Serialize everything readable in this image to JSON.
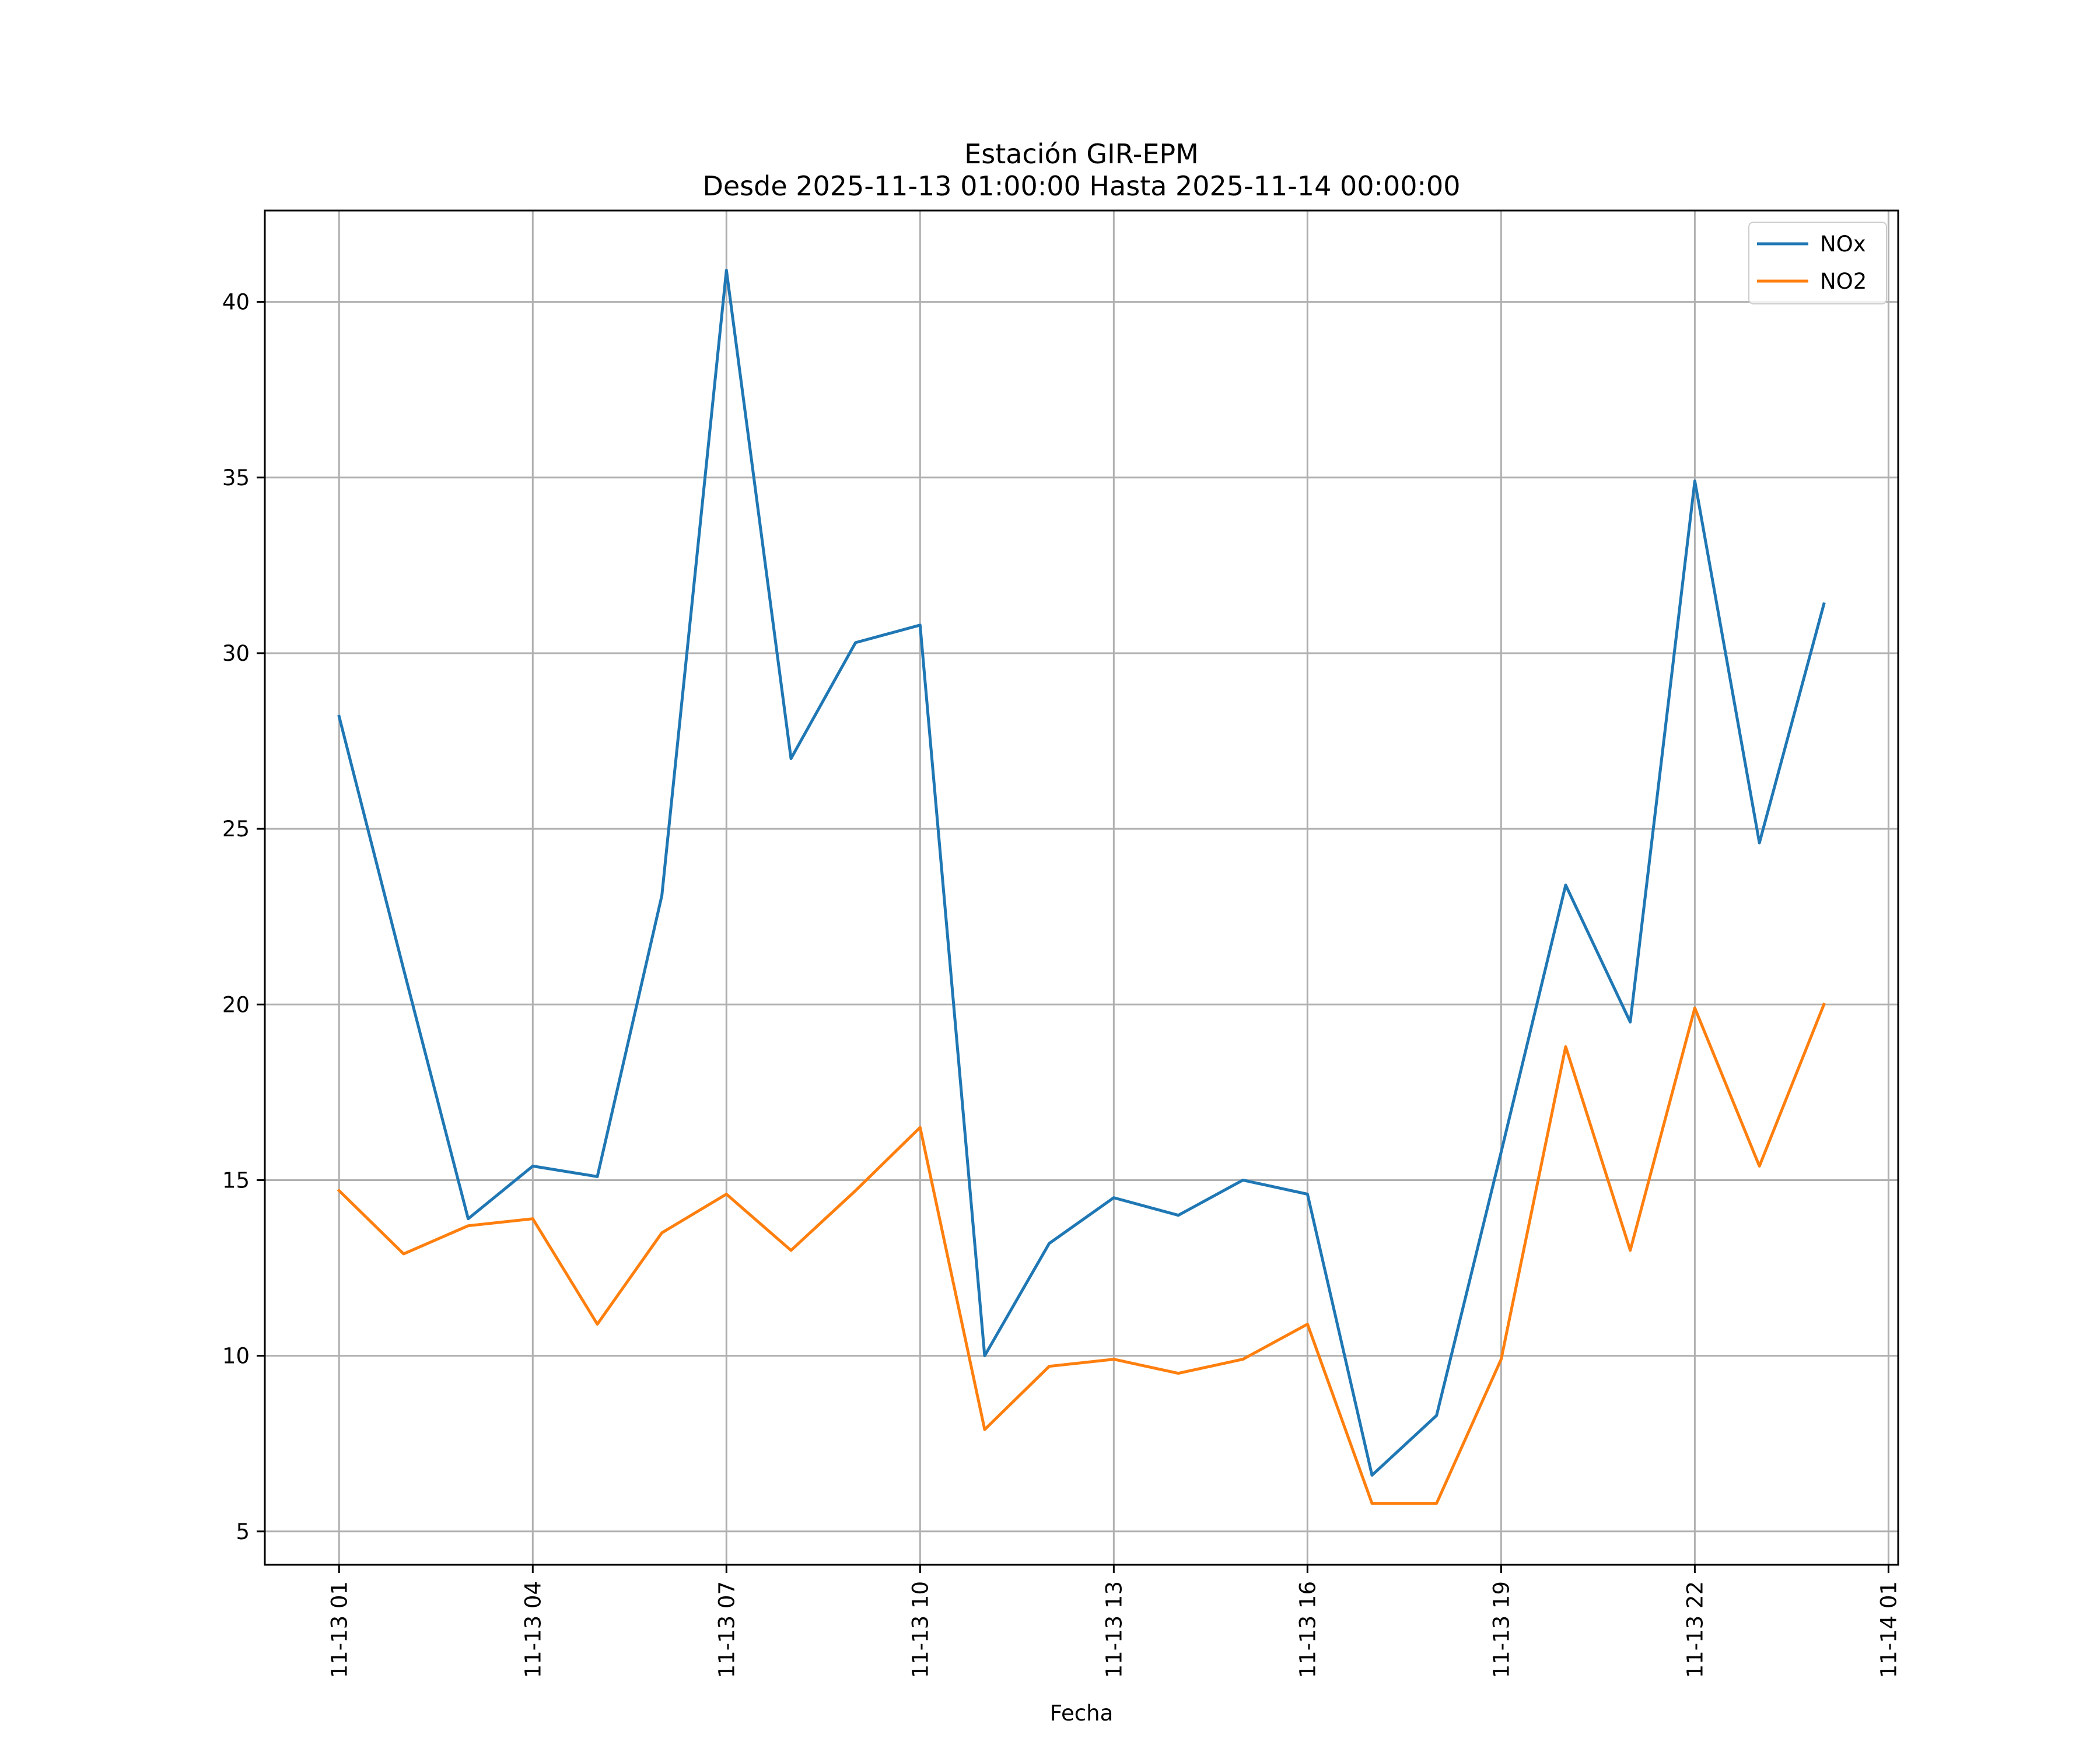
{
  "chart_data": {
    "type": "line",
    "title_line1": "Estación GIR-EPM",
    "title_line2": "Desde 2025-11-13 01:00:00 Hasta 2025-11-14 00:00:00",
    "xlabel": "Fecha",
    "ylabel": "",
    "grid": true,
    "legend_position": "top-right",
    "x": [
      "11-13 01",
      "11-13 02",
      "11-13 03",
      "11-13 04",
      "11-13 05",
      "11-13 06",
      "11-13 07",
      "11-13 08",
      "11-13 09",
      "11-13 10",
      "11-13 11",
      "11-13 12",
      "11-13 13",
      "11-13 14",
      "11-13 15",
      "11-13 16",
      "11-13 17",
      "11-13 18",
      "11-13 19",
      "11-13 20",
      "11-13 21",
      "11-13 22",
      "11-13 23",
      "11-14 00"
    ],
    "x_ticks": [
      {
        "label": "11-13 01",
        "hour": 0
      },
      {
        "label": "11-13 04",
        "hour": 3
      },
      {
        "label": "11-13 07",
        "hour": 6
      },
      {
        "label": "11-13 10",
        "hour": 9
      },
      {
        "label": "11-13 13",
        "hour": 12
      },
      {
        "label": "11-13 16",
        "hour": 15
      },
      {
        "label": "11-13 19",
        "hour": 18
      },
      {
        "label": "11-13 22",
        "hour": 21
      },
      {
        "label": "11-14 01",
        "hour": 24
      }
    ],
    "xlim": [
      -1.15,
      24.15
    ],
    "ylim": [
      4.05,
      42.6
    ],
    "y_ticks": [
      5,
      10,
      15,
      20,
      25,
      30,
      35,
      40
    ],
    "series": [
      {
        "name": "NOx",
        "color": "#1f77b4",
        "values": [
          28.2,
          21.0,
          13.9,
          15.4,
          15.1,
          23.1,
          40.9,
          27.0,
          30.3,
          30.8,
          10.0,
          13.2,
          14.5,
          14.0,
          15.0,
          14.6,
          6.6,
          8.3,
          15.8,
          23.4,
          19.5,
          34.9,
          24.6,
          31.4
        ]
      },
      {
        "name": "NO2",
        "color": "#ff7f0e",
        "values": [
          14.7,
          12.9,
          13.7,
          13.9,
          10.9,
          13.5,
          14.6,
          13.0,
          14.7,
          16.5,
          7.9,
          9.7,
          9.9,
          9.5,
          9.9,
          10.9,
          5.8,
          5.8,
          9.9,
          18.8,
          13.0,
          19.9,
          15.4,
          20.0
        ]
      }
    ]
  }
}
